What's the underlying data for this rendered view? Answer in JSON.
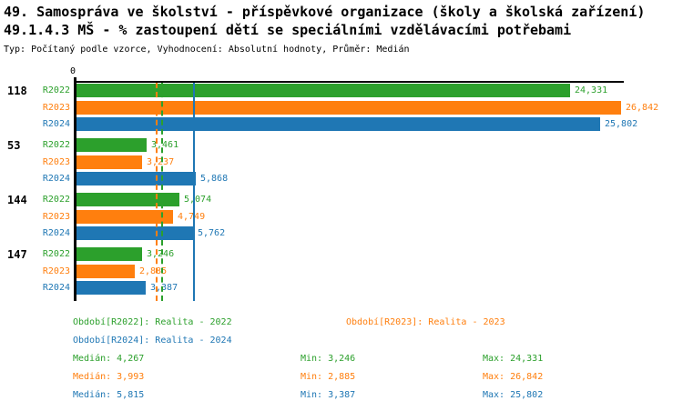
{
  "header": {
    "title_line1": "49. Samospráva ve školství - příspěvkové organizace (školy a školská zařízení)",
    "title_line2": "49.1.4.3 MŠ - % zastoupení dětí se speciálními vzdělávacími potřebami",
    "subtitle": "Typ: Počítaný podle vzorce, Vyhodnocení: Absolutní hodnoty, Průměr: Medián"
  },
  "colors": {
    "r2022": "#2ca02c",
    "r2023": "#ff7f0e",
    "r2024": "#1f77b4",
    "axis": "#000000"
  },
  "chart_data": {
    "type": "bar",
    "orientation": "horizontal",
    "title": "49.1.4.3 MŠ - % zastoupení dětí se speciálními vzdělávacími potřebami",
    "x_axis": {
      "origin_label": "0",
      "max": 27000,
      "grid": false
    },
    "categories": [
      "118",
      "53",
      "144",
      "147"
    ],
    "series": [
      {
        "name": "R2022",
        "color_key": "r2022",
        "period_label": "Období[R2022]: Realita - 2022",
        "values": [
          24331,
          3461,
          5074,
          3246
        ],
        "value_labels": [
          "24,331",
          "3,461",
          "5,074",
          "3,246"
        ],
        "median": 4267,
        "median_line_style": "dashed"
      },
      {
        "name": "R2023",
        "color_key": "r2023",
        "period_label": "Období[R2023]: Realita - 2023",
        "values": [
          26842,
          3237,
          4749,
          2885
        ],
        "value_labels": [
          "26,842",
          "3,237",
          "4,749",
          "2,885"
        ],
        "median": 3993,
        "median_line_style": "dashed"
      },
      {
        "name": "R2024",
        "color_key": "r2024",
        "period_label": "Období[R2024]: Realita - 2024",
        "values": [
          25802,
          5868,
          5762,
          3387
        ],
        "value_labels": [
          "25,802",
          "5,868",
          "5,762",
          "3,387"
        ],
        "median": 5815,
        "median_line_style": "solid"
      }
    ],
    "legend_position": "bottom"
  },
  "stats": {
    "rows": [
      {
        "color_key": "r2022",
        "median_label": "Medián: 4,267",
        "min_label": "Min: 3,246",
        "max_label": "Max: 24,331"
      },
      {
        "color_key": "r2023",
        "median_label": "Medián: 3,993",
        "min_label": "Min: 2,885",
        "max_label": "Max: 26,842"
      },
      {
        "color_key": "r2024",
        "median_label": "Medián: 5,815",
        "min_label": "Min: 3,387",
        "max_label": "Max: 25,802"
      }
    ]
  }
}
